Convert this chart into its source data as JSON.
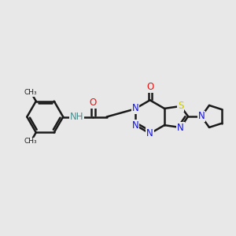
{
  "bg_color": "#e8e8e8",
  "bond_color": "#1a1a1a",
  "bond_width": 1.8,
  "atom_colors": {
    "N": "#1010ee",
    "O": "#ee1010",
    "S": "#cccc00",
    "NH": "#4a9090",
    "C": "#1a1a1a"
  },
  "font_size": 8.5,
  "fig_size": [
    3.0,
    3.0
  ],
  "dpi": 100
}
